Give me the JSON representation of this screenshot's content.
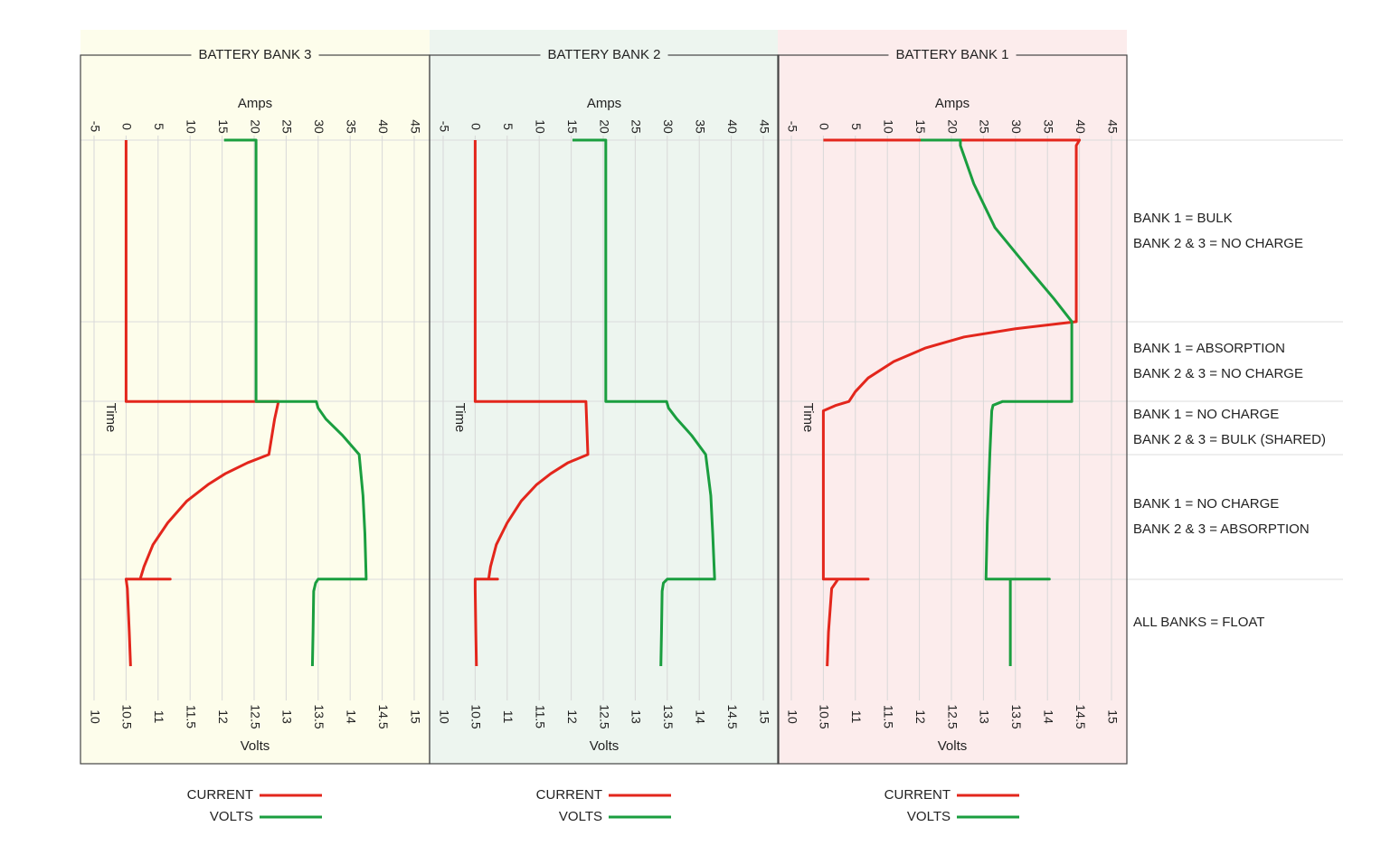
{
  "chart_data": [
    {
      "type": "line",
      "title": "BATTERY BANK 3",
      "ylabel": "Amps",
      "y2label": "Volts",
      "xlabel": "Time",
      "xlim": [
        0,
        100
      ],
      "ylim": [
        -5,
        45
      ],
      "yticks": [
        -5,
        0,
        5,
        10,
        15,
        20,
        25,
        30,
        35,
        40,
        45
      ],
      "y2lim": [
        10,
        15
      ],
      "y2ticks": [
        10,
        10.5,
        11,
        11.5,
        12,
        12.5,
        13,
        13.5,
        14,
        14.5,
        15
      ],
      "grid": true,
      "background": "#fdfdeb",
      "series": [
        {
          "name": "CURRENT",
          "color": "#e3261c",
          "x": [
            0,
            47.8,
            47.8,
            51,
            57.5,
            59,
            61,
            63,
            66,
            70,
            74,
            78,
            80.3,
            80.3,
            80.3,
            82,
            90,
            96.2
          ],
          "values": [
            0,
            0,
            23.8,
            23.2,
            22.3,
            19,
            15.5,
            12.8,
            9.5,
            6.5,
            4.2,
            2.8,
            2.2,
            6.9,
            0,
            0.2,
            0.5,
            0.7
          ]
        },
        {
          "name": "VOLTS",
          "color": "#1a9e3f",
          "axis": "y2",
          "x": [
            0,
            0,
            47.8,
            47.8,
            49,
            51,
            54,
            57.5,
            65,
            72,
            80.3,
            80.3,
            81,
            82.5,
            90,
            96.2
          ],
          "values": [
            12.03,
            12.53,
            12.53,
            13.47,
            13.5,
            13.62,
            13.88,
            14.14,
            14.2,
            14.23,
            14.25,
            13.5,
            13.46,
            13.43,
            13.42,
            13.41
          ]
        }
      ]
    },
    {
      "type": "line",
      "title": "BATTERY BANK 2",
      "ylabel": "Amps",
      "y2label": "Volts",
      "xlabel": "Time",
      "xlim": [
        0,
        100
      ],
      "ylim": [
        -5,
        45
      ],
      "yticks": [
        -5,
        0,
        5,
        10,
        15,
        20,
        25,
        30,
        35,
        40,
        45
      ],
      "y2lim": [
        10,
        15
      ],
      "y2ticks": [
        10,
        10.5,
        11,
        11.5,
        12,
        12.5,
        13,
        13.5,
        14,
        14.5,
        15
      ],
      "grid": true,
      "background": "#edf5ef",
      "series": [
        {
          "name": "CURRENT",
          "color": "#e3261c",
          "x": [
            0,
            47.8,
            47.8,
            57.5,
            59,
            61,
            63,
            66,
            70,
            74,
            78,
            80.3,
            80.3,
            80.3,
            82,
            90,
            96.2
          ],
          "values": [
            0,
            0,
            17.3,
            17.6,
            14.5,
            11.8,
            9.6,
            7.2,
            5,
            3.3,
            2.4,
            2.1,
            3.5,
            0,
            0,
            0.1,
            0.2
          ]
        },
        {
          "name": "VOLTS",
          "color": "#1a9e3f",
          "axis": "y2",
          "x": [
            0,
            0,
            47.8,
            47.8,
            49,
            51,
            54,
            57.5,
            65,
            72,
            80.3,
            80.3,
            81,
            82.5,
            90,
            96.2
          ],
          "values": [
            12.02,
            12.54,
            12.54,
            13.49,
            13.52,
            13.65,
            13.88,
            14.1,
            14.18,
            14.21,
            14.24,
            13.5,
            13.44,
            13.42,
            13.41,
            13.4
          ]
        }
      ]
    },
    {
      "type": "line",
      "title": "BATTERY BANK 1",
      "ylabel": "Amps",
      "y2label": "Volts",
      "xlabel": "Time",
      "xlim": [
        0,
        100
      ],
      "ylim": [
        -5,
        45
      ],
      "yticks": [
        -5,
        0,
        5,
        10,
        15,
        20,
        25,
        30,
        35,
        40,
        45
      ],
      "y2lim": [
        10,
        15
      ],
      "y2ticks": [
        10,
        10.5,
        11,
        11.5,
        12,
        12.5,
        13,
        13.5,
        14,
        14.5,
        15
      ],
      "grid": true,
      "background": "#fcecec",
      "series": [
        {
          "name": "CURRENT",
          "color": "#e3261c",
          "x": [
            0,
            0,
            1,
            33.2,
            34.5,
            36,
            38,
            40.5,
            43.5,
            46,
            47.8,
            48.5,
            49.5,
            80.3,
            80.3,
            80.3,
            82,
            90,
            96.2
          ],
          "values": [
            0,
            40,
            39.5,
            39.5,
            30,
            22,
            16,
            11,
            7,
            5,
            4,
            2,
            0,
            0,
            7,
            2.3,
            1.3,
            0.8,
            0.6
          ]
        },
        {
          "name": "VOLTS",
          "color": "#1a9e3f",
          "axis": "y2",
          "x": [
            0,
            0,
            1,
            8,
            16,
            24,
            29,
            33.2,
            47.8,
            47.8,
            48.5,
            49.5,
            57.5,
            70,
            80.3,
            80.3,
            80.3,
            96.2
          ],
          "values": [
            12.02,
            12.64,
            12.64,
            12.85,
            13.18,
            13.74,
            14.1,
            14.38,
            14.38,
            13.3,
            13.15,
            13.13,
            13.1,
            13.06,
            13.04,
            14.03,
            13.42,
            13.42
          ]
        }
      ]
    }
  ],
  "phase_labels": [
    [
      "BANK 1 = BULK",
      "BANK 2 & 3 = NO CHARGE"
    ],
    [
      "BANK 1 = ABSORPTION",
      "BANK 2 & 3 = NO CHARGE"
    ],
    [
      "BANK 1 = NO CHARGE",
      "BANK 2 & 3 = BULK (SHARED)"
    ],
    [
      "BANK 1 = NO CHARGE",
      "BANK 2 & 3 = ABSORPTION"
    ],
    [
      "ALL BANKS = FLOAT"
    ]
  ]
}
